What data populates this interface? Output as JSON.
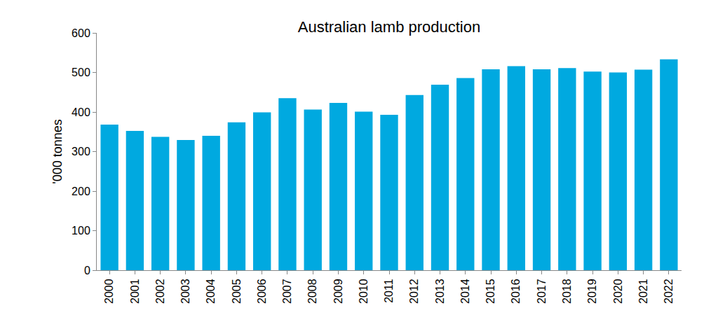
{
  "chart_data": {
    "type": "bar",
    "title": "Australian lamb production",
    "y_label": "'000 tonnes",
    "categories": [
      "2000",
      "2001",
      "2002",
      "2003",
      "2004",
      "2005",
      "2006",
      "2007",
      "2008",
      "2009",
      "2010",
      "2011",
      "2012",
      "2013",
      "2014",
      "2015",
      "2016",
      "2017",
      "2018",
      "2019",
      "2020",
      "2021",
      "2022"
    ],
    "values": [
      368,
      352,
      337,
      329,
      340,
      374,
      399,
      435,
      406,
      423,
      401,
      393,
      443,
      469,
      486,
      508,
      516,
      508,
      511,
      502,
      500,
      507,
      533
    ],
    "color": "#00a9e0",
    "ylim": [
      0,
      600
    ],
    "yticks": [
      0,
      100,
      200,
      300,
      400,
      500,
      600
    ],
    "grid": false
  }
}
